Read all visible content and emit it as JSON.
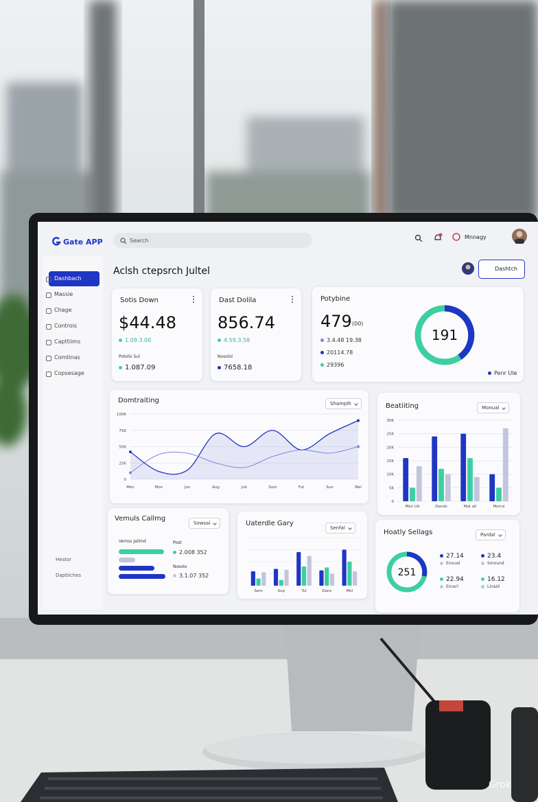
{
  "header": {
    "app_name": "Gate APP",
    "search": "Search",
    "user": "Mnnagy"
  },
  "sidebar": {
    "items": [
      "Dashbach",
      "Massie",
      "Chage",
      "Controis",
      "Capttiims",
      "Comtinas",
      "Copsesage"
    ],
    "footer": [
      "Hestor",
      "Daptiiches"
    ]
  },
  "page": {
    "title": "Aclsh ctepsrch Jultel",
    "button": "Dashtch"
  },
  "cards": [
    {
      "title": "Sotis Down",
      "value": "$44.48",
      "delta": "1.09.3.00",
      "sub_label": "Potolis Sul",
      "sub_value": "1.087.09"
    },
    {
      "title": "Dast Dolila",
      "value": "856.74",
      "delta": "4.59.3.58",
      "sub_label": "Nosolol",
      "sub_value": "7658.18"
    }
  ],
  "summary": {
    "title": "Potybine",
    "value": "479",
    "unit": "(00)",
    "items": [
      "3.4.48 19.38",
      "20114.78",
      "29396"
    ],
    "donut_label": "191",
    "legend": "Penr Ule"
  },
  "line_chart": {
    "type": "line",
    "title": "Domtraiting",
    "dropdown": "Shamplh",
    "categories": [
      "Mon",
      "Mon",
      "Jun",
      "Aug",
      "Juh",
      "Sum",
      "Fut",
      "Sun",
      "Mel"
    ],
    "series": [
      {
        "color": "#1f36c4",
        "values": [
          42000,
          12000,
          14000,
          70000,
          50000,
          75000,
          45000,
          70000,
          90000
        ]
      },
      {
        "color": "#7d84d8",
        "values": [
          10000,
          38000,
          40000,
          25000,
          18000,
          35000,
          45000,
          40000,
          50000
        ]
      }
    ],
    "ylim": [
      0,
      100000
    ],
    "yticks": [
      0,
      {
        "value": 25000,
        "label": "25K"
      },
      {
        "value": 50000,
        "label": "50K"
      },
      {
        "value": 75000,
        "label": "75K"
      },
      {
        "value": 100000,
        "label": "100K"
      }
    ],
    "area": true,
    "grid": true
  },
  "bar_chart": {
    "type": "bar",
    "title": "Beatiiting",
    "dropdown": "Monual",
    "categories": [
      "Mon Ud",
      "Dands",
      "Mat all",
      "Morrsi"
    ],
    "series": [
      {
        "color": "#1f36c4",
        "values": [
          16000,
          24000,
          25000,
          10000
        ]
      },
      {
        "color": "#3ecfa0",
        "values": [
          5000,
          12000,
          16000,
          5000
        ]
      },
      {
        "color": "#c3c4de",
        "values": [
          13000,
          10000,
          9000,
          27000
        ]
      }
    ],
    "ylim": [
      0,
      30000
    ],
    "yticks": [
      0,
      {
        "value": 5000,
        "label": "5K"
      },
      {
        "value": 10000,
        "label": "10K"
      },
      {
        "value": 15000,
        "label": "15K"
      },
      {
        "value": 20000,
        "label": "20K"
      },
      {
        "value": 25000,
        "label": "25K"
      },
      {
        "value": 30000,
        "label": "30K"
      }
    ],
    "grid": true
  },
  "volume": {
    "title": "Vemuls Callmg",
    "dropdown": "Sowsai",
    "label": "Vemss Jallmd",
    "items": [
      {
        "label": "Post",
        "value": "2.008 352"
      },
      {
        "label": "Nosolo",
        "value": "3.1.07 352"
      }
    ]
  },
  "update_chart": {
    "type": "bar",
    "title": "Uaterdle Gary",
    "dropdown": "Senfal",
    "categories": [
      "Sem",
      "Sup",
      "Tul",
      "Dans",
      "Mel"
    ],
    "series": [
      {
        "color": "#1f36c4",
        "values": [
          30,
          35,
          70,
          32,
          75
        ]
      },
      {
        "color": "#3ecfa0",
        "values": [
          15,
          12,
          40,
          38,
          50
        ]
      },
      {
        "color": "#c3c4de",
        "values": [
          28,
          33,
          62,
          25,
          30
        ]
      }
    ],
    "ylim": [
      0,
      100
    ],
    "grid": true
  },
  "health": {
    "title": "Hoatly Sellags",
    "dropdown": "Pardal",
    "donut_label": "251",
    "legend": [
      {
        "value": "27.14",
        "label": "Enoual",
        "color": "#1f36c4"
      },
      {
        "value": "23.4",
        "label": "Smound",
        "color": "#1f36c4"
      },
      {
        "value": "22.94",
        "label": "Enrarl",
        "color": "#3ecfa0"
      },
      {
        "value": "16.12",
        "label": "Linaid",
        "color": "#3ecfa0"
      }
    ]
  },
  "watermark": "Grok"
}
